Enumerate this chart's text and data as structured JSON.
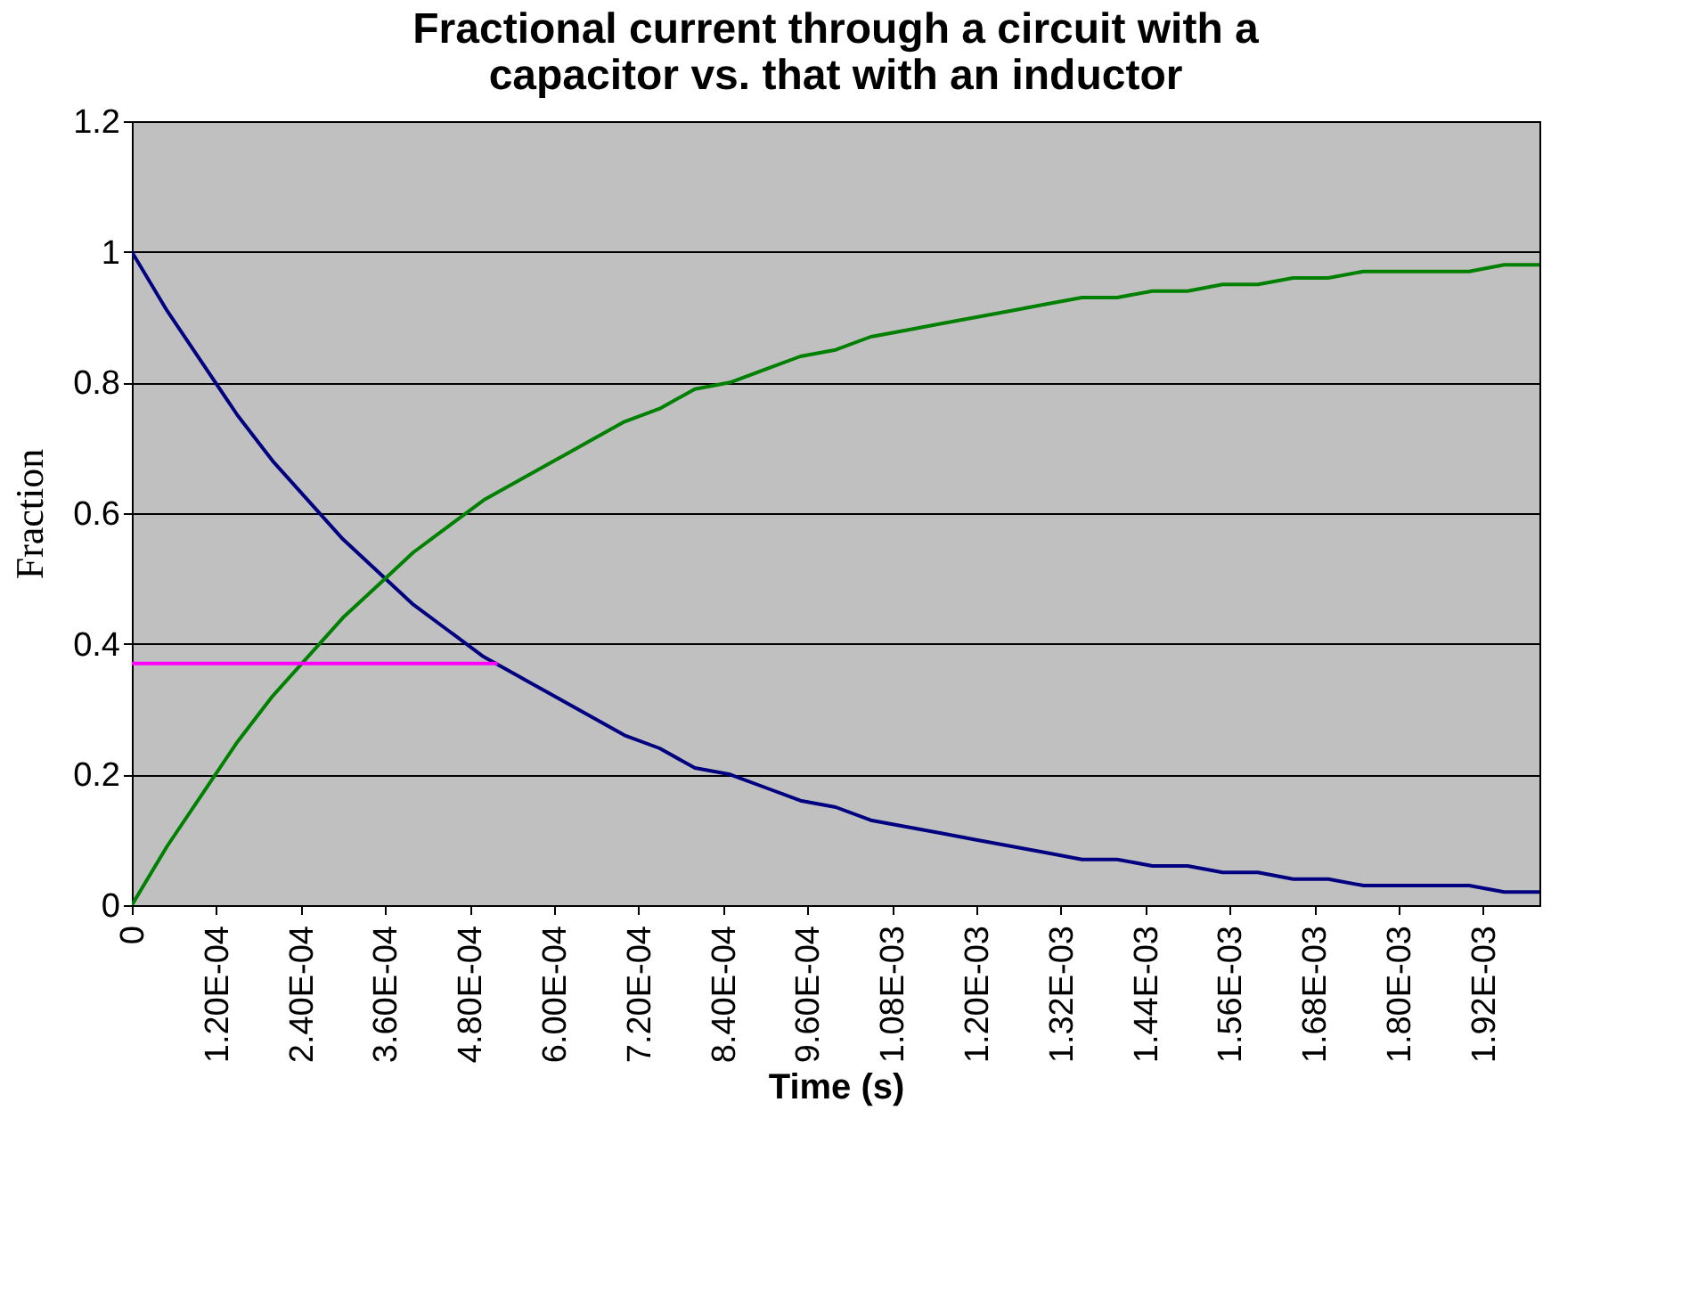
{
  "chart_data": {
    "type": "line",
    "title": "Fractional current through a circuit with a capacitor vs. that with an inductor",
    "xlabel": "Time (s)",
    "ylabel": "Fraction",
    "x": [
      0,
      5e-05,
      0.0001,
      0.00015,
      0.0002,
      0.00025,
      0.0003,
      0.00035,
      0.0004,
      0.00045,
      0.0005,
      0.00055,
      0.0006,
      0.00065,
      0.0007,
      0.00075,
      0.0008,
      0.00085,
      0.0009,
      0.00095,
      0.001,
      0.00105,
      0.0011,
      0.00115,
      0.0012,
      0.00125,
      0.0013,
      0.00135,
      0.0014,
      0.00145,
      0.0015,
      0.00155,
      0.0016,
      0.00165,
      0.0017,
      0.00175,
      0.0018,
      0.00185,
      0.0019,
      0.00195,
      0.002
    ],
    "series": [
      {
        "color": "#000080",
        "values": [
          1.0,
          0.91,
          0.83,
          0.75,
          0.68,
          0.62,
          0.56,
          0.51,
          0.46,
          0.42,
          0.38,
          0.35,
          0.32,
          0.29,
          0.26,
          0.24,
          0.21,
          0.2,
          0.18,
          0.16,
          0.15,
          0.13,
          0.12,
          0.11,
          0.1,
          0.09,
          0.08,
          0.07,
          0.07,
          0.06,
          0.06,
          0.05,
          0.05,
          0.04,
          0.04,
          0.03,
          0.03,
          0.03,
          0.03,
          0.02,
          0.02
        ]
      },
      {
        "color": "#008000",
        "values": [
          0.0,
          0.09,
          0.17,
          0.25,
          0.32,
          0.38,
          0.44,
          0.49,
          0.54,
          0.58,
          0.62,
          0.65,
          0.68,
          0.71,
          0.74,
          0.76,
          0.79,
          0.8,
          0.82,
          0.84,
          0.85,
          0.87,
          0.88,
          0.89,
          0.9,
          0.91,
          0.92,
          0.93,
          0.93,
          0.94,
          0.94,
          0.95,
          0.95,
          0.96,
          0.96,
          0.97,
          0.97,
          0.97,
          0.97,
          0.98,
          0.98
        ]
      },
      {
        "type": "line",
        "color": "#ff00ff",
        "x": [
          0,
          0.00052
        ],
        "values": [
          0.37,
          0.37
        ]
      }
    ],
    "xlim": [
      0,
      0.002
    ],
    "xticks": [
      0,
      {
        "value": 0.00012,
        "label": "1.20E-04"
      },
      {
        "value": 0.00024,
        "label": "2.40E-04"
      },
      {
        "value": 0.00036,
        "label": "3.60E-04"
      },
      {
        "value": 0.00048,
        "label": "4.80E-04"
      },
      {
        "value": 0.0006,
        "label": "6.00E-04"
      },
      {
        "value": 0.00072,
        "label": "7.20E-04"
      },
      {
        "value": 0.00084,
        "label": "8.40E-04"
      },
      {
        "value": 0.00096,
        "label": "9.60E-04"
      },
      {
        "value": 0.00108,
        "label": "1.08E-03"
      },
      {
        "value": 0.0012,
        "label": "1.20E-03"
      },
      {
        "value": 0.00132,
        "label": "1.32E-03"
      },
      {
        "value": 0.00144,
        "label": "1.44E-03"
      },
      {
        "value": 0.00156,
        "label": "1.56E-03"
      },
      {
        "value": 0.00168,
        "label": "1.68E-03"
      },
      {
        "value": 0.0018,
        "label": "1.80E-03"
      },
      {
        "value": 0.00192,
        "label": "1.92E-03"
      }
    ],
    "ylim": [
      0,
      1.2
    ],
    "yticks": [
      0,
      0.2,
      0.4,
      0.6,
      0.8,
      1,
      1.2
    ],
    "grid": "y",
    "marker": "none",
    "line_style": "solid"
  }
}
